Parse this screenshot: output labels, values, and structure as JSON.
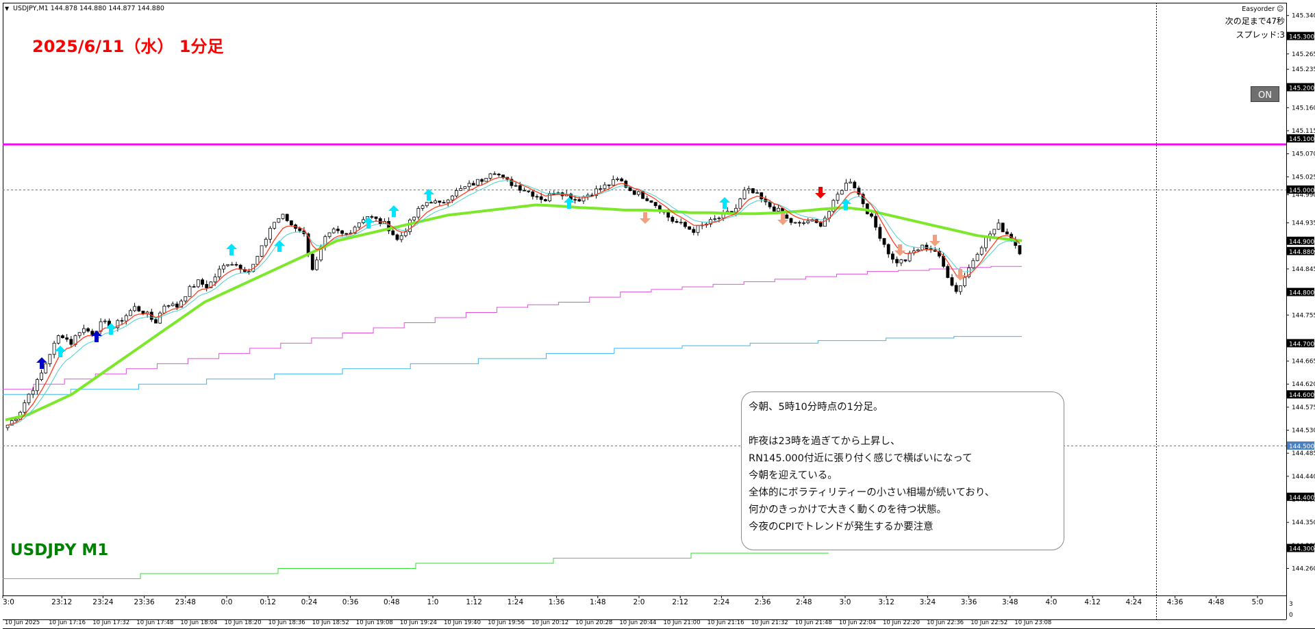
{
  "header": {
    "symbol_info": "USDJPY,M1  144.878 144.880 144.877 144.880",
    "title": "2025/6/11（水）  1分足",
    "symbol_label": "USDJPY M1",
    "ea_name": "Easyorder",
    "next_bar": "次の足まで47秒",
    "spread": "スプレッド:3",
    "on_button": "ON"
  },
  "colors": {
    "title": "#ff0000",
    "symbol_label": "#008000",
    "bull_arrow": "#00e5ff",
    "bull_arrow_strong": "#0000cc",
    "bear_arrow": "#f0a080",
    "bear_arrow_strong": "#ee0000",
    "level_line": "#ff00ff",
    "ma_long": "#7de82a",
    "ma_fast": "#ff3b1f",
    "ma_slow": "#48d1cc",
    "trend_magenta": "#e050e0",
    "trend_cyan": "#35b8f0",
    "trend_green": "#33e033"
  },
  "note": {
    "lines": [
      "今朝、5時10分時点の1分足。",
      "",
      "昨夜は23時を過ぎてから上昇し、",
      "RN145.000付近に張り付く感じで横ばいになって",
      "今朝を迎えている。",
      "全体的にボラティリティーの小さい相場が続いており、",
      "何かのきっかけで大きく動くのを待つ状態。",
      "今夜のCPIでトレンドが発生するか要注意"
    ]
  },
  "price_axis": {
    "ticks": [
      "145.340",
      "145.265",
      "145.235",
      "145.160",
      "145.115",
      "145.070",
      "145.025",
      "144.990",
      "144.935",
      "144.880",
      "144.845",
      "144.755",
      "144.665",
      "144.620",
      "144.575",
      "144.530",
      "144.485",
      "144.440",
      "144.395",
      "144.350",
      "144.305",
      "144.260"
    ],
    "boxed_labels": [
      "145.300",
      "145.200",
      "145.100",
      "145.000",
      "144.900",
      "144.880",
      "144.800",
      "144.700",
      "144.600",
      "144.500",
      "144.400",
      "144.300"
    ]
  },
  "time_axis": {
    "top_labels": [
      "3:0",
      "23:12",
      "23:24",
      "23:36",
      "23:48",
      "0:0",
      "0:12",
      "0:24",
      "0:36",
      "0:48",
      "1:0",
      "1:12",
      "1:24",
      "1:36",
      "1:48",
      "2:0",
      "2:12",
      "2:24",
      "2:36",
      "2:48",
      "3:0",
      "3:12",
      "3:24",
      "3:36",
      "3:48",
      "4:0",
      "4:12",
      "4:24",
      "4:36",
      "4:48",
      "5:0"
    ],
    "bottom_labels": [
      "10 Jun 2025",
      "10 Jun 17:16",
      "10 Jun 17:32",
      "10 Jun 17:48",
      "10 Jun 18:04",
      "10 Jun 18:20",
      "10 Jun 18:36",
      "10 Jun 18:52",
      "10 Jun 19:08",
      "10 Jun 19:24",
      "10 Jun 19:40",
      "10 Jun 19:56",
      "10 Jun 20:12",
      "10 Jun 20:28",
      "10 Jun 20:44",
      "10 Jun 21:00",
      "10 Jun 21:16",
      "10 Jun 21:32",
      "10 Jun 21:48",
      "10 Jun 22:04",
      "10 Jun 22:20",
      "10 Jun 22:36",
      "10 Jun 22:52",
      "10 Jun 23:08"
    ]
  },
  "subwindow_axis": [
    "3",
    "0"
  ],
  "levels": {
    "horizontal_magenta": 145.1,
    "dotted": [
      145.0,
      144.5
    ]
  },
  "chart_data": {
    "type": "line",
    "xlabel": "",
    "ylabel": "",
    "ylim": [
      144.23,
      145.37
    ],
    "price_series": [
      144.54,
      144.56,
      144.6,
      144.63,
      144.68,
      144.72,
      144.7,
      144.73,
      144.72,
      144.74,
      144.73,
      144.75,
      144.77,
      144.76,
      144.74,
      144.78,
      144.77,
      144.8,
      144.82,
      144.81,
      144.84,
      144.86,
      144.85,
      144.84,
      144.88,
      144.93,
      144.95,
      144.93,
      144.92,
      144.84,
      144.9,
      144.92,
      144.91,
      144.93,
      144.95,
      144.94,
      144.93,
      144.9,
      144.93,
      144.96,
      144.98,
      144.97,
      144.99,
      145.0,
      145.01,
      145.02,
      145.04,
      145.02,
      145.01,
      145.0,
      144.99,
      144.98,
      145.0,
      144.99,
      144.98,
      144.99,
      145.0,
      145.01,
      145.02,
      145.0,
      144.99,
      144.98,
      144.96,
      144.94,
      144.93,
      144.92,
      144.93,
      144.94,
      144.95,
      144.96,
      145.0,
      144.99,
      144.97,
      144.96,
      144.94,
      144.93,
      144.94,
      144.93,
      144.96,
      145.0,
      145.02,
      144.98,
      144.94,
      144.9,
      144.86,
      144.86,
      144.88,
      144.89,
      144.88,
      144.84,
      144.8,
      144.84,
      144.88,
      144.91,
      144.93,
      144.91,
      144.88
    ],
    "series": [
      {
        "name": "",
        "values": [
          144.55,
          144.56,
          144.58,
          144.6,
          144.63,
          144.66,
          144.69,
          144.72,
          144.75,
          144.78,
          144.8,
          144.82,
          144.84,
          144.86,
          144.88,
          144.9,
          144.91,
          144.92,
          144.93,
          144.94,
          144.95,
          144.955,
          144.96,
          144.965,
          144.97,
          144.968,
          144.965,
          144.963,
          144.96,
          144.96,
          144.958,
          144.955,
          144.955,
          144.953,
          144.953,
          144.955,
          144.958,
          144.962,
          144.965,
          144.96,
          144.95,
          144.94,
          144.93,
          144.92,
          144.91,
          144.905,
          144.9
        ]
      },
      {
        "name": "",
        "values": [
          144.61,
          144.62,
          144.63,
          144.64,
          144.65,
          144.66,
          144.67,
          144.68,
          144.69,
          144.7,
          144.71,
          144.72,
          144.73,
          144.74,
          144.75,
          144.76,
          144.77,
          144.775,
          144.78,
          144.79,
          144.8,
          144.805,
          144.81,
          144.815,
          144.82,
          144.825,
          144.83,
          144.835,
          144.84,
          144.842,
          144.845,
          144.848,
          144.85
        ]
      },
      {
        "name": "",
        "values": [
          144.6,
          144.61,
          144.62,
          144.63,
          144.64,
          144.65,
          144.66,
          144.67,
          144.68,
          144.69,
          144.695,
          144.7,
          144.705,
          144.71,
          144.713
        ]
      },
      {
        "name": "",
        "values": [
          144.24,
          144.25,
          144.26,
          144.27,
          144.28,
          144.29
        ]
      }
    ]
  }
}
